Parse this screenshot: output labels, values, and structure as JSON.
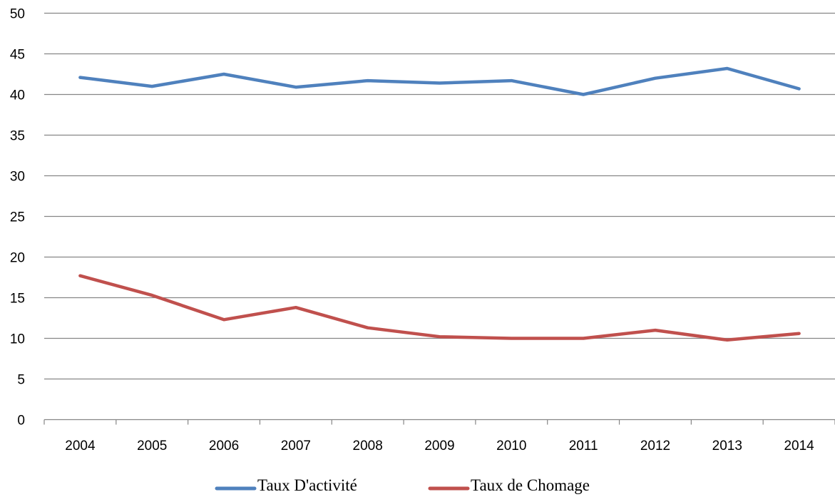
{
  "chart_data": {
    "type": "line",
    "title": "",
    "xlabel": "",
    "ylabel": "",
    "x": [
      "2004",
      "2005",
      "2006",
      "2007",
      "2008",
      "2009",
      "2010",
      "2011",
      "2012",
      "2013",
      "2014"
    ],
    "ylim": [
      0,
      50
    ],
    "yticks": [
      "0",
      "5",
      "10",
      "15",
      "20",
      "25",
      "30",
      "35",
      "40",
      "45",
      "50"
    ],
    "grid": true,
    "legend_position": "bottom",
    "series": [
      {
        "name": "Taux D'activité",
        "color": "#4F81BD",
        "values": [
          42.1,
          41.0,
          42.5,
          40.9,
          41.7,
          41.4,
          41.7,
          40.0,
          42.0,
          43.2,
          40.7
        ]
      },
      {
        "name": "Taux de Chomage",
        "color": "#C0504D",
        "values": [
          17.7,
          15.3,
          12.3,
          13.8,
          11.3,
          10.2,
          10.0,
          10.0,
          11.0,
          9.8,
          10.6
        ]
      }
    ]
  }
}
